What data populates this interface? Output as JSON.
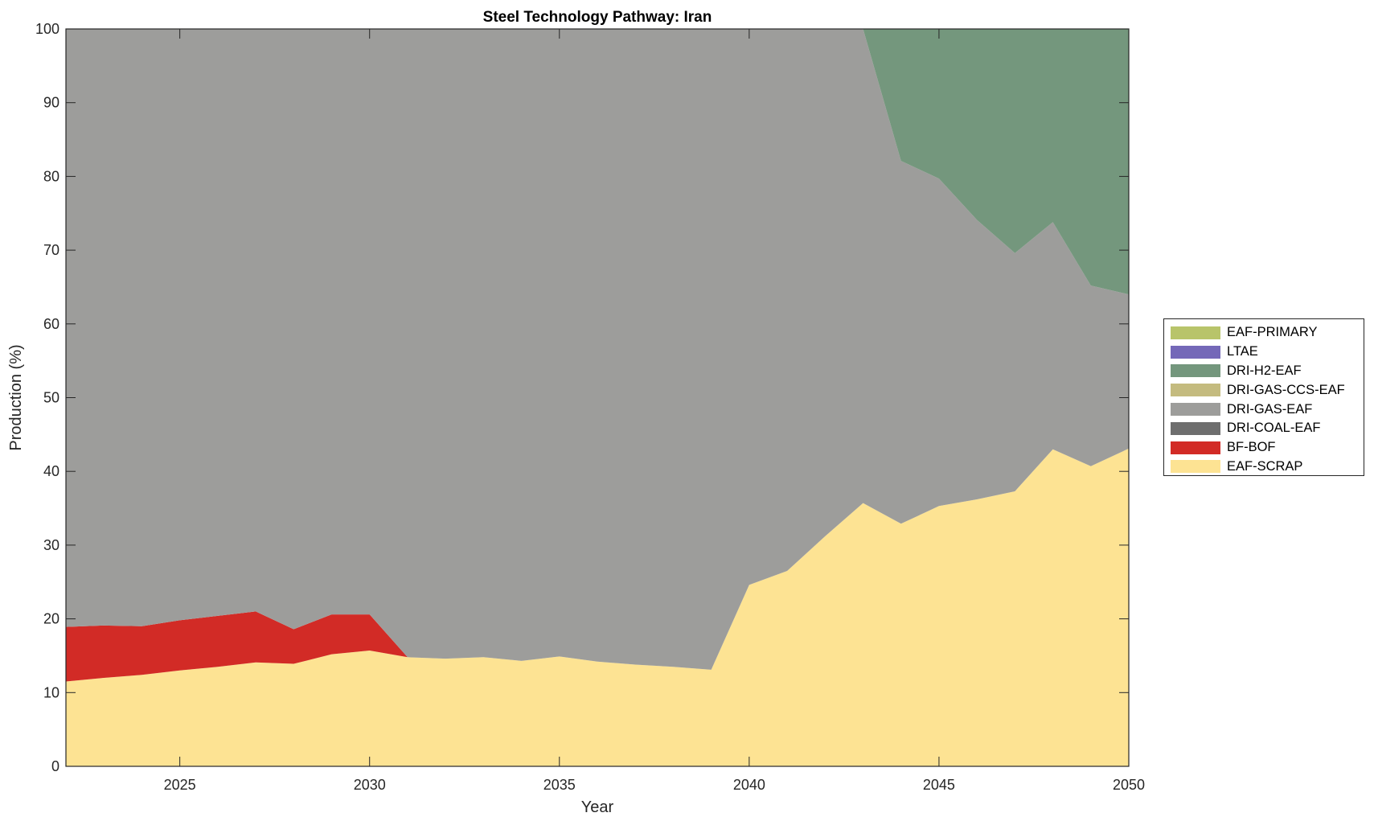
{
  "chart_data": {
    "type": "area",
    "stacked": true,
    "title": "Steel Technology Pathway: Iran",
    "xlabel": "Year",
    "ylabel": "Production (%)",
    "xlim": [
      2022,
      2050
    ],
    "ylim": [
      0,
      100
    ],
    "xticks": [
      2025,
      2030,
      2035,
      2040,
      2045,
      2050
    ],
    "yticks": [
      0,
      10,
      20,
      30,
      40,
      50,
      60,
      70,
      80,
      90,
      100
    ],
    "grid": false,
    "legend_placement": "right",
    "x": [
      2022,
      2023,
      2024,
      2025,
      2026,
      2027,
      2028,
      2029,
      2030,
      2031,
      2032,
      2033,
      2034,
      2035,
      2036,
      2037,
      2038,
      2039,
      2040,
      2041,
      2042,
      2043,
      2044,
      2045,
      2046,
      2047,
      2048,
      2049,
      2050
    ],
    "series": [
      {
        "name": "EAF-SCRAP",
        "color": "#fde393",
        "values": [
          11.5,
          12.0,
          12.4,
          13.0,
          13.5,
          14.1,
          13.9,
          15.2,
          15.7,
          14.8,
          14.6,
          14.8,
          14.3,
          14.9,
          14.2,
          13.8,
          13.5,
          13.1,
          24.6,
          26.5,
          31.2,
          35.7,
          32.9,
          35.3,
          36.2,
          37.3,
          43.0,
          40.7,
          43.1
        ]
      },
      {
        "name": "BF-BOF",
        "color": "#d22b26",
        "values": [
          7.4,
          7.1,
          6.6,
          6.8,
          6.9,
          6.9,
          4.7,
          5.4,
          4.9,
          0,
          0,
          0,
          0,
          0,
          0,
          0,
          0,
          0,
          0,
          0,
          0,
          0,
          0,
          0,
          0,
          0,
          0,
          0,
          0
        ]
      },
      {
        "name": "DRI-COAL-EAF",
        "color": "#6e6e6e",
        "values": [
          0,
          0,
          0,
          0,
          0,
          0,
          0,
          0,
          0,
          0,
          0,
          0,
          0,
          0,
          0,
          0,
          0,
          0,
          0,
          0,
          0,
          0,
          0,
          0,
          0,
          0,
          0,
          0,
          0
        ]
      },
      {
        "name": "DRI-GAS-EAF",
        "color": "#9d9d9b",
        "values": [
          81.1,
          80.9,
          81.0,
          80.2,
          79.6,
          79.0,
          81.4,
          79.4,
          79.4,
          85.2,
          85.4,
          85.2,
          85.7,
          85.1,
          85.8,
          86.2,
          86.5,
          86.9,
          75.4,
          73.5,
          68.8,
          64.3,
          49.2,
          44.4,
          37.9,
          32.3,
          30.8,
          24.5,
          20.9
        ]
      },
      {
        "name": "DRI-GAS-CCS-EAF",
        "color": "#c4bb7f",
        "values": [
          0,
          0,
          0,
          0,
          0,
          0,
          0,
          0,
          0,
          0,
          0,
          0,
          0,
          0,
          0,
          0,
          0,
          0,
          0,
          0,
          0,
          0,
          0,
          0,
          0,
          0,
          0,
          0,
          0
        ]
      },
      {
        "name": "DRI-H2-EAF",
        "color": "#74977d",
        "values": [
          0,
          0,
          0,
          0,
          0,
          0,
          0,
          0,
          0,
          0,
          0,
          0,
          0,
          0,
          0,
          0,
          0,
          0,
          0,
          0,
          0,
          0,
          17.9,
          20.3,
          25.9,
          30.4,
          26.2,
          34.8,
          36.0
        ]
      },
      {
        "name": "LTAE",
        "color": "#7468b8",
        "values": [
          0,
          0,
          0,
          0,
          0,
          0,
          0,
          0,
          0,
          0,
          0,
          0,
          0,
          0,
          0,
          0,
          0,
          0,
          0,
          0,
          0,
          0,
          0,
          0,
          0,
          0,
          0,
          0,
          0
        ]
      },
      {
        "name": "EAF-PRIMARY",
        "color": "#b8c46a",
        "values": [
          0,
          0,
          0,
          0,
          0,
          0,
          0,
          0,
          0,
          0,
          0,
          0,
          0,
          0,
          0,
          0,
          0,
          0,
          0,
          0,
          0,
          0,
          0,
          0,
          0,
          0,
          0,
          0,
          0
        ]
      }
    ],
    "legend_order": [
      "EAF-PRIMARY",
      "LTAE",
      "DRI-H2-EAF",
      "DRI-GAS-CCS-EAF",
      "DRI-GAS-EAF",
      "DRI-COAL-EAF",
      "BF-BOF",
      "EAF-SCRAP"
    ]
  }
}
